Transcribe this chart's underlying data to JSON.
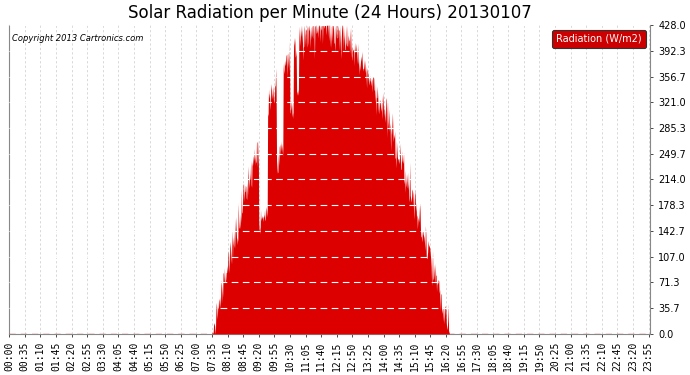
{
  "title": "Solar Radiation per Minute (24 Hours) 20130107",
  "copyright_text": "Copyright 2013 Cartronics.com",
  "legend_label": "Radiation (W/m2)",
  "legend_bg": "#cc0000",
  "legend_fg": "#ffffff",
  "fill_color": "#dd0000",
  "bg_color": "#ffffff",
  "grid_color": "#bbbbbb",
  "ylim": [
    0.0,
    428.0
  ],
  "yticks": [
    0.0,
    35.7,
    71.3,
    107.0,
    142.7,
    178.3,
    214.0,
    249.7,
    285.3,
    321.0,
    356.7,
    392.3,
    428.0
  ],
  "title_fontsize": 12,
  "axis_fontsize": 7,
  "tick_interval_minutes": 35,
  "total_minutes": 1440,
  "sunrise": 455,
  "sunset": 988,
  "solar_noon": 700,
  "peak": 428.0,
  "noise_seed": 7,
  "noise_scale": 15.0
}
